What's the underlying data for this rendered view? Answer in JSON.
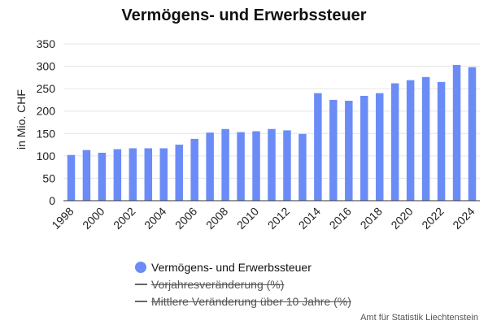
{
  "chart_data": {
    "type": "bar",
    "title": "Vermögens- und Erwerbssteuer",
    "ylabel": "in Mio. CHF",
    "xlabel": "",
    "ylim": [
      0,
      350
    ],
    "yticks": [
      0,
      50,
      100,
      150,
      200,
      250,
      300,
      350
    ],
    "xtick_labels": [
      "1998",
      "2000",
      "2002",
      "2004",
      "2006",
      "2008",
      "2010",
      "2012",
      "2014",
      "2016",
      "2018",
      "2020",
      "2022",
      "2024"
    ],
    "categories": [
      "1998",
      "1999",
      "2000",
      "2001",
      "2002",
      "2003",
      "2004",
      "2005",
      "2006",
      "2007",
      "2008",
      "2009",
      "2010",
      "2011",
      "2012",
      "2013",
      "2014",
      "2015",
      "2016",
      "2017",
      "2018",
      "2019",
      "2020",
      "2021",
      "2022",
      "2023",
      "2024"
    ],
    "series": [
      {
        "name": "Vermögens- und Erwerbssteuer",
        "color": "#6b8cf7",
        "values": [
          102,
          113,
          107,
          115,
          117,
          117,
          117,
          125,
          138,
          152,
          160,
          153,
          155,
          160,
          157,
          149,
          240,
          225,
          223,
          234,
          240,
          262,
          269,
          276,
          265,
          303,
          298
        ]
      }
    ],
    "grid": true,
    "legend": {
      "position": "bottom",
      "items": [
        {
          "label": "Vermögens- und Erwerbssteuer",
          "hidden": false
        },
        {
          "label": "Vorjahresveränderung (%)",
          "hidden": true
        },
        {
          "label": "Mittlere Veränderung über 10 Jahre (%)",
          "hidden": true
        }
      ]
    }
  },
  "credit": "Amt für Statistik Liechtenstein"
}
